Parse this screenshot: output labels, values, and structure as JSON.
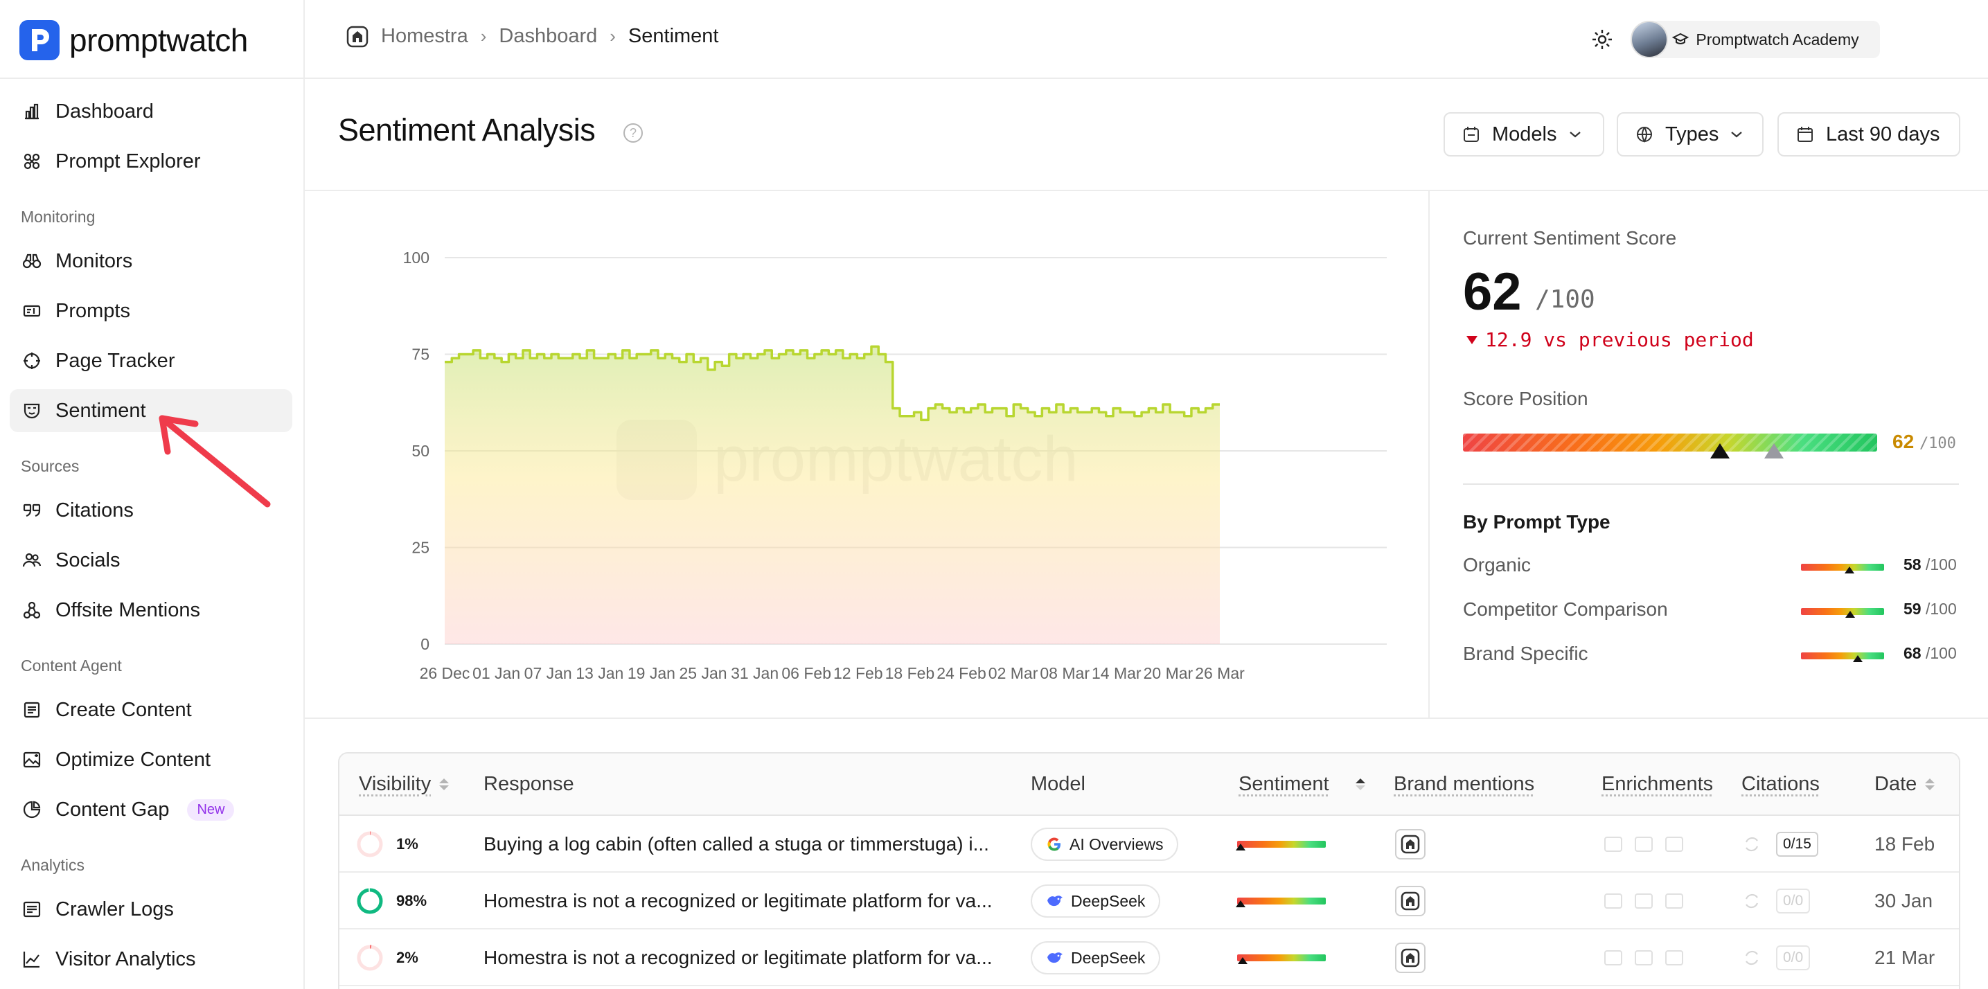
{
  "app": {
    "name": "promptwatch"
  },
  "sidebar": {
    "top_items": [
      {
        "label": "Dashboard",
        "icon": "bar-chart-icon"
      },
      {
        "label": "Prompt Explorer",
        "icon": "explore-icon"
      }
    ],
    "sections": [
      {
        "title": "Monitoring",
        "items": [
          {
            "label": "Monitors",
            "icon": "binoculars-icon"
          },
          {
            "label": "Prompts",
            "icon": "prompt-icon"
          },
          {
            "label": "Page Tracker",
            "icon": "target-icon"
          },
          {
            "label": "Sentiment",
            "icon": "mask-icon",
            "active": true
          }
        ]
      },
      {
        "title": "Sources",
        "items": [
          {
            "label": "Citations",
            "icon": "quote-icon"
          },
          {
            "label": "Socials",
            "icon": "users-icon"
          },
          {
            "label": "Offsite Mentions",
            "icon": "share-icon"
          }
        ]
      },
      {
        "title": "Content Agent",
        "items": [
          {
            "label": "Create Content",
            "icon": "document-icon"
          },
          {
            "label": "Optimize Content",
            "icon": "image-ai-icon"
          },
          {
            "label": "Content Gap",
            "icon": "pie-icon",
            "badge": "New"
          }
        ]
      },
      {
        "title": "Analytics",
        "items": [
          {
            "label": "Crawler Logs",
            "icon": "log-icon"
          },
          {
            "label": "Visitor Analytics",
            "icon": "line-chart-icon"
          }
        ]
      }
    ]
  },
  "topbar": {
    "breadcrumb": [
      "Homestra",
      "Dashboard",
      "Sentiment"
    ],
    "academy_label": "Promptwatch Academy"
  },
  "header": {
    "title": "Sentiment Analysis",
    "help": "?",
    "filters": {
      "models": "Models",
      "types": "Types",
      "range": "Last 90 days"
    }
  },
  "chart_data": {
    "type": "line",
    "title": "",
    "xlabel": "",
    "ylabel": "",
    "ylim": [
      0,
      100
    ],
    "yticks": [
      0,
      25,
      50,
      75,
      100
    ],
    "xtick_labels": [
      "26 Dec",
      "01 Jan",
      "07 Jan",
      "13 Jan",
      "19 Jan",
      "25 Jan",
      "31 Jan",
      "06 Feb",
      "12 Feb",
      "18 Feb",
      "24 Feb",
      "02 Mar",
      "08 Mar",
      "14 Mar",
      "20 Mar",
      "26 Mar"
    ],
    "grid": true,
    "watermark": "promptwatch",
    "series": [
      {
        "values": [
          73,
          74,
          75,
          75,
          76,
          74,
          75,
          74,
          73,
          75,
          74,
          76,
          74,
          75,
          74,
          75,
          74,
          74,
          75,
          74,
          76,
          74,
          74,
          75,
          74,
          76,
          74,
          75,
          75,
          76,
          74,
          75,
          74,
          73,
          75,
          73,
          74,
          71,
          73,
          72,
          75,
          74,
          75,
          74,
          75,
          76,
          74,
          75,
          76,
          75,
          76,
          74,
          75,
          76,
          75,
          76,
          74,
          75,
          74,
          75,
          77,
          75,
          73,
          61,
          59,
          59,
          60,
          58,
          61,
          62,
          61,
          60,
          61,
          60,
          61,
          62,
          60,
          61,
          61,
          59,
          62,
          61,
          60,
          59,
          61,
          60,
          62,
          60,
          61,
          60,
          60,
          61,
          60,
          59,
          61,
          60,
          60,
          59,
          60,
          61,
          60,
          62,
          60,
          60,
          59,
          61,
          60,
          61,
          62
        ]
      }
    ]
  },
  "score": {
    "label": "Current Sentiment Score",
    "value": "62",
    "denom": "/100",
    "delta": "12.9 vs previous period",
    "position_label": "Score Position",
    "position_value": 62,
    "previous_value": 75,
    "position_text": "62",
    "position_denom": "/100",
    "by_type_title": "By Prompt Type",
    "by_type": [
      {
        "name": "Organic",
        "value": 58,
        "text": "58",
        "denom": "/100"
      },
      {
        "name": "Competitor Comparison",
        "value": 59,
        "text": "59",
        "denom": "/100"
      },
      {
        "name": "Brand Specific",
        "value": 68,
        "text": "68",
        "denom": "/100"
      }
    ]
  },
  "table": {
    "headers": {
      "visibility": "Visibility",
      "response": "Response",
      "model": "Model",
      "sentiment": "Sentiment",
      "brand_mentions": "Brand mentions",
      "enrichments": "Enrichments",
      "citations": "Citations",
      "date": "Date"
    },
    "rows": [
      {
        "visibility": 1,
        "visibility_text": "1%",
        "response": "Buying a log cabin (often called a stuga or timmerstuga) i...",
        "model": "AI Overviews",
        "model_icon": "google-icon",
        "sentiment": 4,
        "citations": "0/15",
        "citations_active": true,
        "date": "18 Feb"
      },
      {
        "visibility": 98,
        "visibility_text": "98%",
        "response": "Homestra is not a recognized or legitimate platform for va...",
        "model": "DeepSeek",
        "model_icon": "deepseek-icon",
        "sentiment": 4,
        "citations": "0/0",
        "citations_active": false,
        "date": "30 Jan"
      },
      {
        "visibility": 2,
        "visibility_text": "2%",
        "response": "Homestra is not a recognized or legitimate platform for va...",
        "model": "DeepSeek",
        "model_icon": "deepseek-icon",
        "sentiment": 6,
        "citations": "0/0",
        "citations_active": false,
        "date": "21 Mar"
      }
    ]
  },
  "colors": {
    "brand": "#2563eb",
    "line": "#b8d630",
    "negative": "#d0021b",
    "score_text": "#c98a00",
    "annotation_arrow": "#ef3b4b"
  }
}
